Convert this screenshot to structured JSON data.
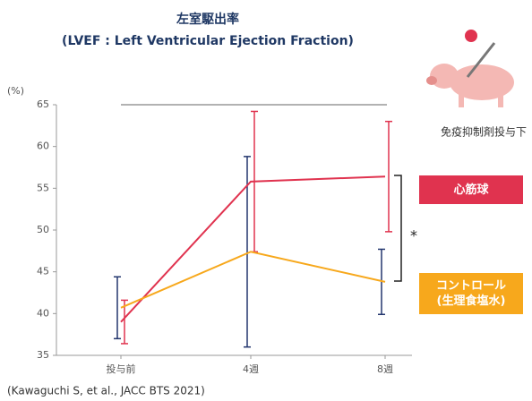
{
  "chart_data": {
    "type": "line",
    "title": "左室駆出率",
    "subtitle": "(LVEF : Left Ventricular Ejection Fraction)",
    "y_label": "(%)",
    "categories": [
      "投与前",
      "4週",
      "8週"
    ],
    "series": [
      {
        "name": "心筋球",
        "color": "#e0334f",
        "error_color": "#e0334f",
        "values": [
          39,
          55.8,
          56.4
        ],
        "errors": [
          2.6,
          8.4,
          6.6
        ]
      },
      {
        "name": "コントロール\n(生理食塩水)",
        "color": "#f7a81c",
        "error_color": "#23366e",
        "values": [
          40.7,
          47.4,
          43.8
        ],
        "errors": [
          3.7,
          11.4,
          3.9
        ]
      }
    ],
    "ylim": [
      35,
      65
    ],
    "yticks": [
      35,
      40,
      45,
      50,
      55,
      60,
      65
    ],
    "annotations": [
      "*",
      "免疫抑制剤投与下"
    ],
    "source": "(Kawaguchi S, et al., JACC BTS 2021)"
  }
}
